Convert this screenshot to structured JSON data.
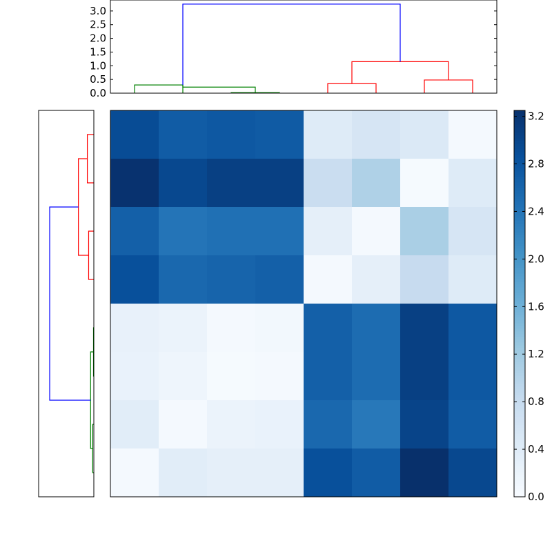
{
  "chart_data": [
    {
      "type": "heatmap",
      "title": "",
      "xlabel": "",
      "ylabel": "",
      "grid": false,
      "colormap": "Blues",
      "value_range": [
        0.0,
        3.25
      ],
      "values": [
        [
          2.9,
          2.7,
          2.75,
          2.72,
          0.4,
          0.55,
          0.45,
          0.05
        ],
        [
          3.22,
          2.95,
          3.05,
          3.05,
          0.75,
          1.05,
          0.03,
          0.4
        ],
        [
          2.65,
          2.4,
          2.45,
          2.45,
          0.3,
          0.05,
          1.1,
          0.55
        ],
        [
          2.85,
          2.55,
          2.6,
          2.65,
          0.05,
          0.3,
          0.8,
          0.4
        ],
        [
          0.25,
          0.2,
          0.05,
          0.08,
          2.65,
          2.5,
          3.05,
          2.75
        ],
        [
          0.22,
          0.15,
          0.03,
          0.05,
          2.65,
          2.5,
          3.05,
          2.75
        ],
        [
          0.35,
          0.05,
          0.2,
          0.22,
          2.55,
          2.35,
          3.0,
          2.7
        ],
        [
          0.05,
          0.35,
          0.3,
          0.3,
          2.85,
          2.7,
          3.25,
          2.95
        ]
      ]
    },
    {
      "type": "colorbar",
      "ylim": [
        0.0,
        3.25
      ],
      "tick_values": [
        0.0,
        0.4,
        0.8,
        1.2,
        1.6,
        2.0,
        2.4,
        2.8,
        3.2
      ],
      "tick_labels": [
        "0.0",
        "0.4",
        "0.8",
        "1.2",
        "1.6",
        "2.0",
        "2.4",
        "2.8",
        "3.2"
      ]
    },
    {
      "type": "dendrogram",
      "orientation": "top",
      "ylim": [
        0.0,
        3.4
      ],
      "tick_values": [
        0.0,
        0.5,
        1.0,
        1.5,
        2.0,
        2.5,
        3.0
      ],
      "tick_labels": [
        "0.0",
        "0.5",
        "1.0",
        "1.5",
        "2.0",
        "2.5",
        "3.0"
      ],
      "leaf_range": [
        0,
        80
      ],
      "links": [
        {
          "left": [
            5,
            0
          ],
          "right": [
            15,
            0
          ],
          "height": 0.3,
          "color": "#008000"
        },
        {
          "left": [
            25,
            0
          ],
          "right": [
            35,
            0
          ],
          "height": 0.02,
          "color": "#008000"
        },
        {
          "left": [
            15,
            0.3
          ],
          "right": [
            30,
            0.02
          ],
          "height": 0.22,
          "color": "#008000"
        },
        {
          "left": [
            45,
            0
          ],
          "right": [
            55,
            0
          ],
          "height": 0.35,
          "color": "#ff0000"
        },
        {
          "left": [
            65,
            0
          ],
          "right": [
            75,
            0
          ],
          "height": 0.48,
          "color": "#ff0000"
        },
        {
          "left": [
            50,
            0.35
          ],
          "right": [
            70,
            0.48
          ],
          "height": 1.15,
          "color": "#ff0000"
        },
        {
          "left": [
            15,
            0.3
          ],
          "right": [
            60,
            1.15
          ],
          "height": 3.25,
          "color": "#0000ff"
        }
      ]
    },
    {
      "type": "dendrogram",
      "orientation": "left",
      "xlim": [
        0.0,
        3.4
      ],
      "leaf_range": [
        0,
        80
      ],
      "links": [
        {
          "left": [
            5,
            0
          ],
          "right": [
            15,
            0
          ],
          "height": 0.07,
          "color": "#008000"
        },
        {
          "left": [
            25,
            0
          ],
          "right": [
            35,
            0
          ],
          "height": 0.02,
          "color": "#008000"
        },
        {
          "left": [
            10,
            0.07
          ],
          "right": [
            30,
            0.02
          ],
          "height": 0.2,
          "color": "#008000"
        },
        {
          "left": [
            45,
            0
          ],
          "right": [
            55,
            0
          ],
          "height": 0.32,
          "color": "#ff0000"
        },
        {
          "left": [
            65,
            0
          ],
          "right": [
            75,
            0
          ],
          "height": 0.4,
          "color": "#ff0000"
        },
        {
          "left": [
            50,
            0.32
          ],
          "right": [
            70,
            0.4
          ],
          "height": 0.95,
          "color": "#ff0000"
        },
        {
          "left": [
            20,
            0.2
          ],
          "right": [
            60,
            0.95
          ],
          "height": 2.72,
          "color": "#0000ff"
        }
      ]
    }
  ]
}
